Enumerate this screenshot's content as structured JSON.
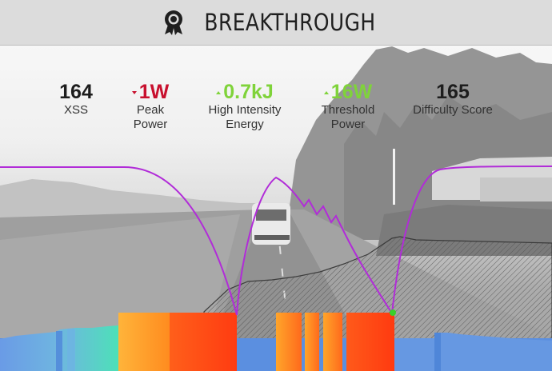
{
  "header": {
    "title": "BREAKTHROUGH",
    "icon": "award-ribbon-icon"
  },
  "metrics": [
    {
      "key": "xss",
      "value": "164",
      "label_lines": [
        "XSS"
      ],
      "trend": "none"
    },
    {
      "key": "peak_power",
      "value": "1W",
      "label_lines": [
        "Peak",
        "Power"
      ],
      "trend": "down"
    },
    {
      "key": "high_intensity_energy",
      "value": "0.7kJ",
      "label_lines": [
        "High Intensity",
        "Energy"
      ],
      "trend": "up"
    },
    {
      "key": "threshold_power",
      "value": "16W",
      "label_lines": [
        "Threshold",
        "Power"
      ],
      "trend": "up"
    },
    {
      "key": "difficulty_score",
      "value": "165",
      "label_lines": [
        "Difficulty Score"
      ],
      "trend": "none"
    }
  ],
  "colors": {
    "trend_down": "#c8102e",
    "trend_up": "#7fd33a",
    "curve": "#b12cd8",
    "base_bar": "#5b8fe0",
    "marker": "#39d12a"
  }
}
